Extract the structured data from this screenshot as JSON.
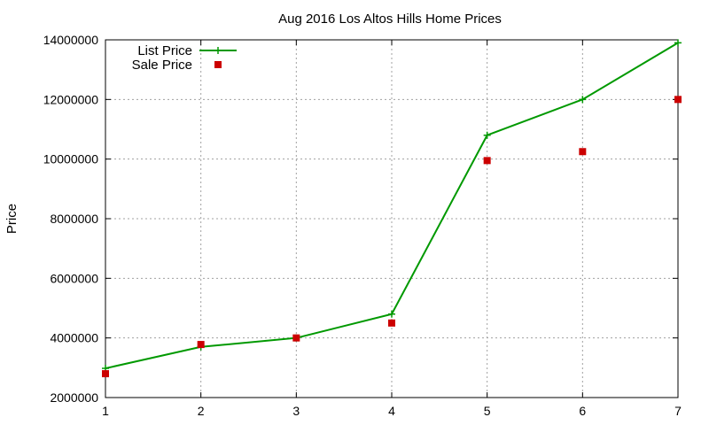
{
  "chart_data": {
    "type": "line",
    "title": "Aug 2016 Los Altos Hills Home Prices",
    "xlabel": "",
    "ylabel": "Price",
    "x": [
      1,
      2,
      3,
      4,
      5,
      6,
      7
    ],
    "xlim": [
      1,
      7
    ],
    "ylim": [
      2000000,
      14000000
    ],
    "xticks": [
      "1",
      "2",
      "3",
      "4",
      "5",
      "6",
      "7"
    ],
    "yticks": [
      "2000000",
      "4000000",
      "6000000",
      "8000000",
      "10000000",
      "12000000",
      "14000000"
    ],
    "grid": true,
    "legend_position": "top-left",
    "series": [
      {
        "name": "List Price",
        "style": "line-with-plus-markers",
        "color": "#009900",
        "values": [
          2980000,
          3700000,
          4000000,
          4800000,
          10800000,
          12000000,
          13900000
        ]
      },
      {
        "name": "Sale Price",
        "style": "square-markers",
        "color": "#cc0000",
        "values": [
          2800000,
          3780000,
          4000000,
          4500000,
          9950000,
          10250000,
          12000000
        ]
      }
    ]
  }
}
